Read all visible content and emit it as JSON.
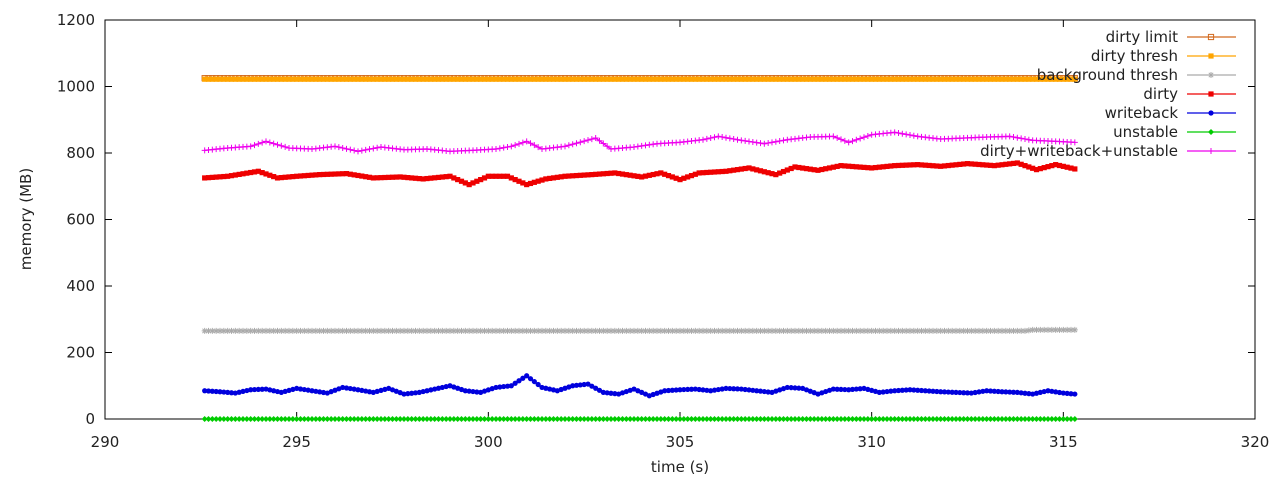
{
  "chart_data": {
    "type": "line",
    "title": "",
    "xlabel": "time (s)",
    "ylabel": "memory (MB)",
    "xlim": [
      290,
      320
    ],
    "ylim": [
      0,
      1200
    ],
    "x_ticks": [
      "290",
      "295",
      "300",
      "305",
      "310",
      "315",
      "320"
    ],
    "y_ticks": [
      "0",
      "200",
      "400",
      "600",
      "800",
      "1000",
      "1200"
    ],
    "grid": false,
    "legend_position": "top-right",
    "series": [
      {
        "name": "dirty limit",
        "color": "#d2691e",
        "marker": "open-square",
        "x": [
          292.6,
          295,
          300,
          305,
          310,
          315.3
        ],
        "values": [
          1025,
          1025,
          1025,
          1025,
          1025,
          1025
        ]
      },
      {
        "name": "dirty thresh",
        "color": "#ffa500",
        "marker": "filled-square",
        "x": [
          292.6,
          295,
          300,
          305,
          310,
          315.3
        ],
        "values": [
          1022,
          1022,
          1022,
          1022,
          1022,
          1022
        ]
      },
      {
        "name": "background thresh",
        "color": "#aaaaaa",
        "marker": "star",
        "x": [
          292.6,
          295,
          300,
          305,
          310,
          314,
          314.2,
          315.3
        ],
        "values": [
          265,
          265,
          265,
          265,
          265,
          265,
          268,
          268
        ]
      },
      {
        "name": "dirty",
        "color": "#ee0000",
        "marker": "filled-square",
        "x": [
          292.6,
          293.2,
          294.0,
          294.5,
          295.0,
          295.6,
          296.3,
          297.0,
          297.7,
          298.3,
          299.0,
          299.5,
          300.0,
          300.5,
          301.0,
          301.5,
          302.0,
          302.7,
          303.3,
          304.0,
          304.5,
          305.0,
          305.5,
          306.2,
          306.8,
          307.5,
          308.0,
          308.6,
          309.2,
          310.0,
          310.6,
          311.2,
          311.8,
          312.5,
          313.2,
          313.8,
          314.3,
          314.8,
          315.3
        ],
        "values": [
          725,
          730,
          745,
          725,
          730,
          735,
          738,
          725,
          728,
          722,
          730,
          705,
          730,
          730,
          705,
          722,
          730,
          735,
          740,
          728,
          740,
          720,
          740,
          745,
          755,
          735,
          758,
          748,
          762,
          755,
          762,
          765,
          760,
          768,
          762,
          770,
          750,
          765,
          752
        ]
      },
      {
        "name": "writeback",
        "color": "#0000dd",
        "marker": "filled-circle",
        "x": [
          292.6,
          293.0,
          293.4,
          293.8,
          294.2,
          294.6,
          295.0,
          295.4,
          295.8,
          296.2,
          296.6,
          297.0,
          297.4,
          297.8,
          298.2,
          298.6,
          299.0,
          299.4,
          299.8,
          300.2,
          300.6,
          301.0,
          301.4,
          301.8,
          302.2,
          302.6,
          303.0,
          303.4,
          303.8,
          304.2,
          304.6,
          305.0,
          305.4,
          305.8,
          306.2,
          306.6,
          307.0,
          307.4,
          307.8,
          308.2,
          308.6,
          309.0,
          309.4,
          309.8,
          310.2,
          310.6,
          311.0,
          311.4,
          311.8,
          312.2,
          312.6,
          313.0,
          313.4,
          313.8,
          314.2,
          314.6,
          315.0,
          315.3
        ],
        "values": [
          85,
          82,
          78,
          88,
          90,
          80,
          92,
          85,
          78,
          95,
          88,
          80,
          92,
          75,
          80,
          90,
          100,
          85,
          80,
          95,
          100,
          130,
          95,
          85,
          100,
          105,
          80,
          75,
          90,
          70,
          85,
          88,
          90,
          85,
          92,
          90,
          85,
          80,
          95,
          92,
          75,
          90,
          88,
          92,
          80,
          85,
          88,
          85,
          82,
          80,
          78,
          85,
          82,
          80,
          75,
          85,
          78,
          75
        ]
      },
      {
        "name": "unstable",
        "color": "#00cc00",
        "marker": "diamond",
        "x": [
          292.6,
          295,
          300,
          305,
          310,
          315.3
        ],
        "values": [
          0,
          0,
          0,
          0,
          0,
          0
        ]
      },
      {
        "name": "dirty+writeback+unstable",
        "color": "#ee00ee",
        "marker": "plus",
        "x": [
          292.6,
          293.2,
          293.8,
          294.2,
          294.8,
          295.4,
          296.0,
          296.6,
          297.2,
          297.8,
          298.4,
          299.0,
          299.6,
          300.2,
          300.6,
          301.0,
          301.4,
          302.0,
          302.8,
          303.2,
          303.8,
          304.4,
          305.0,
          305.6,
          306.0,
          306.6,
          307.2,
          307.8,
          308.4,
          309.0,
          309.4,
          310.0,
          310.6,
          311.2,
          311.8,
          312.4,
          313.0,
          313.6,
          314.2,
          314.8,
          315.3
        ],
        "values": [
          808,
          815,
          820,
          835,
          815,
          812,
          820,
          805,
          818,
          810,
          812,
          805,
          808,
          812,
          820,
          835,
          812,
          820,
          845,
          812,
          818,
          828,
          832,
          840,
          850,
          838,
          828,
          840,
          848,
          850,
          832,
          855,
          862,
          850,
          842,
          845,
          848,
          850,
          838,
          835,
          832
        ]
      }
    ]
  }
}
